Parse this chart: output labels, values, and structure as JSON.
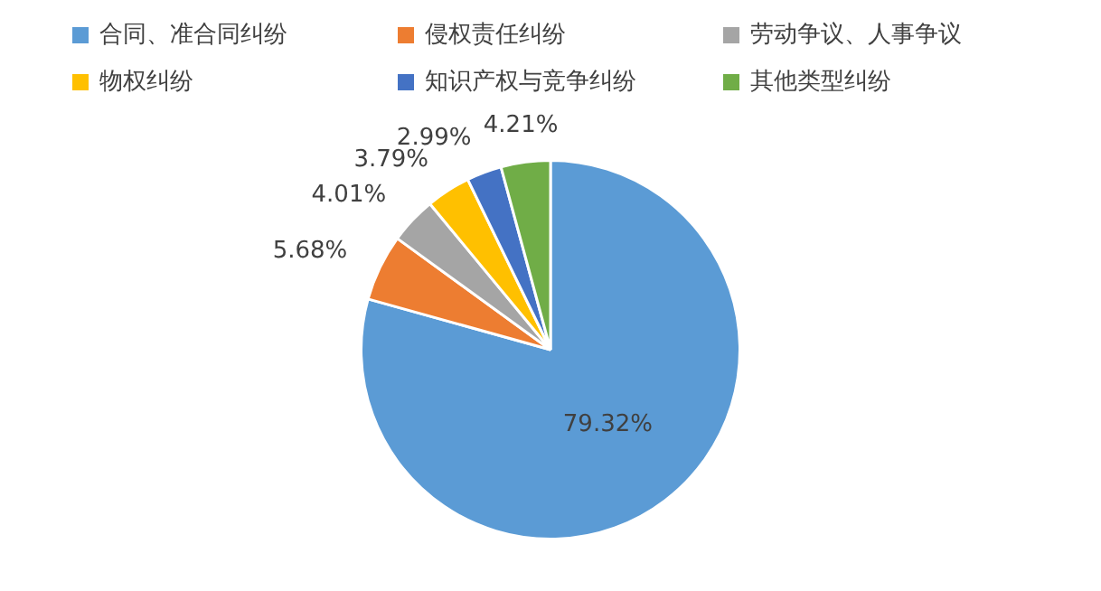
{
  "chart_data": {
    "type": "pie",
    "categories": [
      "合同、准合同纠纷",
      "侵权责任纠纷",
      "劳动争议、人事争议",
      "物权纠纷",
      "知识产权与竞争纠纷",
      "其他类型纠纷"
    ],
    "values": [
      79.32,
      5.68,
      4.01,
      3.79,
      2.99,
      4.21
    ],
    "colors": [
      "#5b9bd5",
      "#ed7d31",
      "#a5a5a5",
      "#ffc000",
      "#4472c4",
      "#70ad47"
    ],
    "value_labels": [
      "79.32%",
      "5.68%",
      "4.01%",
      "3.79%",
      "2.99%",
      "4.21%"
    ],
    "legend": "top"
  }
}
